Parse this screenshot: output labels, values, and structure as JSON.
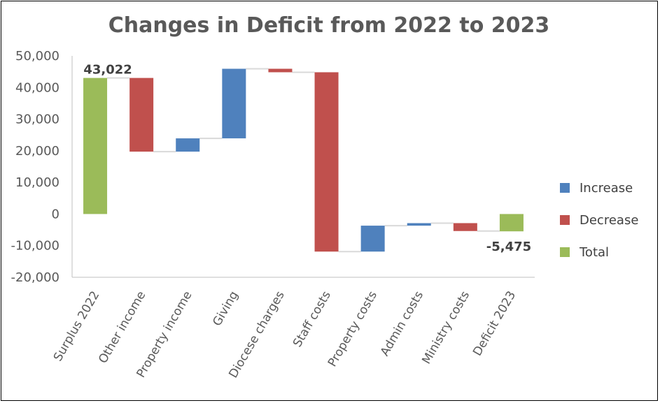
{
  "chart_data": {
    "type": "waterfall",
    "title": "Changes in Deficit from 2022 to 2023",
    "ylim": [
      -20000,
      50000
    ],
    "yticks": [
      50000,
      40000,
      30000,
      20000,
      10000,
      0,
      -10000,
      -20000
    ],
    "ytick_labels": [
      "50,000",
      "40,000",
      "30,000",
      "20,000",
      "10,000",
      "0",
      "-10,000",
      "-20,000"
    ],
    "categories": [
      "Surplus 2022",
      "Other income",
      "Property income",
      "Giving",
      "Diocese charges",
      "Staff costs",
      "Property costs",
      "Admin costs",
      "Ministry costs",
      "Deficit 2023"
    ],
    "steps": [
      {
        "kind": "total",
        "value": 43022
      },
      {
        "kind": "decrease",
        "value": -23300
      },
      {
        "kind": "increase",
        "value": 4200
      },
      {
        "kind": "increase",
        "value": 22000
      },
      {
        "kind": "decrease",
        "value": -1100
      },
      {
        "kind": "decrease",
        "value": -56700
      },
      {
        "kind": "increase",
        "value": 8200
      },
      {
        "kind": "increase",
        "value": 800
      },
      {
        "kind": "decrease",
        "value": -2500
      },
      {
        "kind": "total",
        "value": -5475
      }
    ],
    "data_labels": [
      {
        "index": 0,
        "text": "43,022",
        "position": "above"
      },
      {
        "index": 9,
        "text": "-5,475",
        "position": "below"
      }
    ],
    "legend": [
      {
        "name": "Increase",
        "color": "#4F81BD"
      },
      {
        "name": "Decrease",
        "color": "#C0504D"
      },
      {
        "name": "Total",
        "color": "#9BBB59"
      }
    ],
    "legend_position": "right",
    "grid": false
  }
}
